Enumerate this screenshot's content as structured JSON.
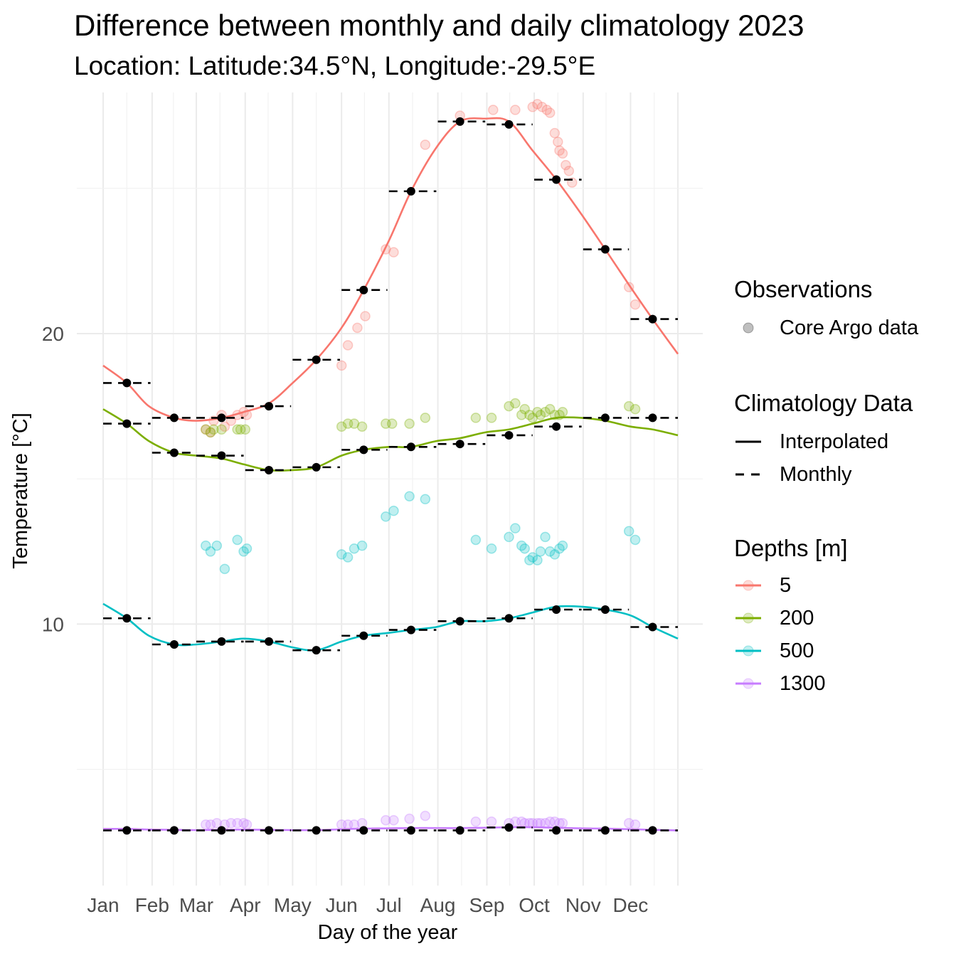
{
  "title": "Difference between monthly and daily climatology 2023",
  "subtitle": "Location: Latitude:34.5°N, Longitude:-29.5°E",
  "chart_data": {
    "type": "line",
    "xlabel": "Day of the year",
    "ylabel": "Temperature [°C]",
    "xlim": [
      1,
      365
    ],
    "ylim": [
      1,
      28.3
    ],
    "x_ticks": [
      {
        "day": 1,
        "label": "Jan"
      },
      {
        "day": 32,
        "label": "Feb"
      },
      {
        "day": 60,
        "label": "Mar"
      },
      {
        "day": 91,
        "label": "Apr"
      },
      {
        "day": 121,
        "label": "May"
      },
      {
        "day": 152,
        "label": "Jun"
      },
      {
        "day": 182,
        "label": "Jul"
      },
      {
        "day": 213,
        "label": "Aug"
      },
      {
        "day": 244,
        "label": "Sep"
      },
      {
        "day": 274,
        "label": "Oct"
      },
      {
        "day": 305,
        "label": "Nov"
      },
      {
        "day": 335,
        "label": "Dec"
      }
    ],
    "y_ticks": [
      10,
      20
    ],
    "y_minor": [
      5,
      15,
      25
    ],
    "grid": true,
    "series": [
      {
        "name": "5",
        "color": "#F8766D",
        "monthly": [
          18.3,
          17.1,
          17.1,
          17.5,
          19.1,
          21.5,
          24.9,
          27.3,
          27.2,
          25.3,
          22.9,
          20.5
        ],
        "interpolated": [
          [
            1,
            18.9
          ],
          [
            16,
            18.3
          ],
          [
            30,
            17.5
          ],
          [
            46,
            17.1
          ],
          [
            60,
            17.0
          ],
          [
            76,
            17.1
          ],
          [
            90,
            17.3
          ],
          [
            106,
            17.6
          ],
          [
            121,
            18.3
          ],
          [
            136,
            19.1
          ],
          [
            152,
            20.2
          ],
          [
            166,
            21.5
          ],
          [
            182,
            23.2
          ],
          [
            196,
            24.9
          ],
          [
            212,
            26.4
          ],
          [
            227,
            27.3
          ],
          [
            243,
            27.4
          ],
          [
            258,
            27.3
          ],
          [
            273,
            26.3
          ],
          [
            288,
            25.3
          ],
          [
            304,
            24.1
          ],
          [
            319,
            22.9
          ],
          [
            335,
            21.6
          ],
          [
            349,
            20.5
          ],
          [
            365,
            19.3
          ]
        ],
        "observations": [
          [
            66,
            16.7
          ],
          [
            69,
            16.6
          ],
          [
            71,
            17.0
          ],
          [
            76,
            17.2
          ],
          [
            78,
            16.8
          ],
          [
            82,
            17.0
          ],
          [
            86,
            17.2
          ],
          [
            90,
            17.3
          ],
          [
            92,
            17.2
          ],
          [
            152,
            18.9
          ],
          [
            156,
            19.6
          ],
          [
            162,
            20.2
          ],
          [
            167,
            20.6
          ],
          [
            180,
            22.9
          ],
          [
            185,
            22.8
          ],
          [
            205,
            26.5
          ],
          [
            227,
            27.5
          ],
          [
            248,
            27.7
          ],
          [
            262,
            27.7
          ],
          [
            273,
            27.8
          ],
          [
            276,
            27.9
          ],
          [
            279,
            27.8
          ],
          [
            282,
            27.7
          ],
          [
            284,
            27.6
          ],
          [
            287,
            26.9
          ],
          [
            289,
            26.6
          ],
          [
            290,
            26.3
          ],
          [
            292,
            26.2
          ],
          [
            294,
            25.8
          ],
          [
            296,
            25.6
          ],
          [
            298,
            25.2
          ],
          [
            334,
            21.6
          ],
          [
            338,
            21.0
          ]
        ]
      },
      {
        "name": "200",
        "color": "#7CAE00",
        "monthly": [
          16.9,
          15.9,
          15.8,
          15.3,
          15.4,
          16.0,
          16.1,
          16.2,
          16.5,
          16.8,
          17.1,
          17.1
        ],
        "interpolated": [
          [
            1,
            17.4
          ],
          [
            16,
            16.9
          ],
          [
            30,
            16.3
          ],
          [
            46,
            15.9
          ],
          [
            60,
            15.8
          ],
          [
            76,
            15.7
          ],
          [
            90,
            15.5
          ],
          [
            106,
            15.3
          ],
          [
            121,
            15.3
          ],
          [
            136,
            15.4
          ],
          [
            152,
            15.8
          ],
          [
            166,
            16.0
          ],
          [
            182,
            16.1
          ],
          [
            196,
            16.1
          ],
          [
            212,
            16.3
          ],
          [
            227,
            16.4
          ],
          [
            243,
            16.6
          ],
          [
            258,
            16.7
          ],
          [
            273,
            16.9
          ],
          [
            288,
            17.1
          ],
          [
            304,
            17.1
          ],
          [
            319,
            17.0
          ],
          [
            335,
            16.8
          ],
          [
            349,
            16.7
          ],
          [
            365,
            16.5
          ]
        ],
        "observations": [
          [
            66,
            16.7
          ],
          [
            69,
            16.6
          ],
          [
            71,
            16.7
          ],
          [
            76,
            16.7
          ],
          [
            86,
            16.7
          ],
          [
            88,
            16.7
          ],
          [
            91,
            16.7
          ],
          [
            152,
            16.8
          ],
          [
            156,
            16.9
          ],
          [
            160,
            16.9
          ],
          [
            165,
            16.8
          ],
          [
            180,
            16.9
          ],
          [
            184,
            16.9
          ],
          [
            195,
            16.9
          ],
          [
            205,
            17.1
          ],
          [
            237,
            17.1
          ],
          [
            247,
            17.1
          ],
          [
            258,
            17.5
          ],
          [
            262,
            17.6
          ],
          [
            266,
            17.2
          ],
          [
            268,
            17.4
          ],
          [
            271,
            17.2
          ],
          [
            273,
            17.1
          ],
          [
            276,
            17.3
          ],
          [
            278,
            17.2
          ],
          [
            281,
            17.3
          ],
          [
            284,
            17.4
          ],
          [
            287,
            17.2
          ],
          [
            290,
            17.2
          ],
          [
            292,
            17.3
          ],
          [
            334,
            17.5
          ],
          [
            338,
            17.4
          ]
        ]
      },
      {
        "name": "500",
        "color": "#00BFC4",
        "monthly": [
          10.2,
          9.3,
          9.4,
          9.4,
          9.1,
          9.6,
          9.8,
          10.1,
          10.2,
          10.5,
          10.5,
          9.9
        ],
        "interpolated": [
          [
            1,
            10.7
          ],
          [
            16,
            10.2
          ],
          [
            30,
            9.6
          ],
          [
            46,
            9.3
          ],
          [
            60,
            9.3
          ],
          [
            76,
            9.4
          ],
          [
            90,
            9.5
          ],
          [
            106,
            9.4
          ],
          [
            121,
            9.2
          ],
          [
            136,
            9.1
          ],
          [
            152,
            9.4
          ],
          [
            166,
            9.6
          ],
          [
            182,
            9.7
          ],
          [
            196,
            9.8
          ],
          [
            212,
            9.9
          ],
          [
            227,
            10.1
          ],
          [
            243,
            10.1
          ],
          [
            258,
            10.2
          ],
          [
            273,
            10.4
          ],
          [
            288,
            10.6
          ],
          [
            304,
            10.6
          ],
          [
            319,
            10.5
          ],
          [
            335,
            10.3
          ],
          [
            349,
            9.9
          ],
          [
            365,
            9.5
          ]
        ],
        "observations": [
          [
            66,
            12.7
          ],
          [
            69,
            12.5
          ],
          [
            73,
            12.7
          ],
          [
            78,
            11.9
          ],
          [
            86,
            12.9
          ],
          [
            90,
            12.5
          ],
          [
            92,
            12.6
          ],
          [
            152,
            12.4
          ],
          [
            156,
            12.3
          ],
          [
            160,
            12.6
          ],
          [
            165,
            12.7
          ],
          [
            180,
            13.7
          ],
          [
            185,
            13.9
          ],
          [
            195,
            14.4
          ],
          [
            205,
            14.3
          ],
          [
            237,
            12.9
          ],
          [
            247,
            12.6
          ],
          [
            258,
            13.0
          ],
          [
            262,
            13.3
          ],
          [
            266,
            12.7
          ],
          [
            268,
            12.6
          ],
          [
            271,
            12.2
          ],
          [
            273,
            12.3
          ],
          [
            276,
            12.2
          ],
          [
            278,
            12.5
          ],
          [
            281,
            13.0
          ],
          [
            284,
            12.5
          ],
          [
            287,
            12.4
          ],
          [
            290,
            12.6
          ],
          [
            292,
            12.7
          ],
          [
            334,
            13.2
          ],
          [
            338,
            12.9
          ]
        ]
      },
      {
        "name": "1300",
        "color": "#C77CFF",
        "monthly": [
          2.9,
          2.9,
          2.9,
          2.9,
          2.9,
          2.9,
          2.9,
          2.9,
          3.0,
          2.9,
          2.9,
          2.9
        ],
        "interpolated": [
          [
            1,
            2.95
          ],
          [
            16,
            2.95
          ],
          [
            30,
            2.93
          ],
          [
            46,
            2.92
          ],
          [
            60,
            2.91
          ],
          [
            76,
            2.92
          ],
          [
            90,
            2.93
          ],
          [
            106,
            2.92
          ],
          [
            121,
            2.91
          ],
          [
            136,
            2.91
          ],
          [
            152,
            2.94
          ],
          [
            166,
            2.96
          ],
          [
            182,
            2.97
          ],
          [
            196,
            2.98
          ],
          [
            212,
            2.98
          ],
          [
            227,
            2.98
          ],
          [
            243,
            2.99
          ],
          [
            258,
            3.01
          ],
          [
            273,
            3.01
          ],
          [
            288,
            2.99
          ],
          [
            304,
            2.97
          ],
          [
            319,
            2.96
          ],
          [
            335,
            2.94
          ],
          [
            349,
            2.92
          ],
          [
            365,
            2.9
          ]
        ],
        "observations": [
          [
            66,
            3.1
          ],
          [
            69,
            3.1
          ],
          [
            73,
            3.15
          ],
          [
            78,
            3.1
          ],
          [
            82,
            3.15
          ],
          [
            86,
            3.15
          ],
          [
            90,
            3.15
          ],
          [
            92,
            3.1
          ],
          [
            152,
            3.1
          ],
          [
            156,
            3.1
          ],
          [
            160,
            3.1
          ],
          [
            165,
            3.15
          ],
          [
            180,
            3.25
          ],
          [
            185,
            3.25
          ],
          [
            195,
            3.3
          ],
          [
            205,
            3.4
          ],
          [
            237,
            3.2
          ],
          [
            247,
            3.2
          ],
          [
            258,
            3.15
          ],
          [
            262,
            3.2
          ],
          [
            266,
            3.2
          ],
          [
            268,
            3.15
          ],
          [
            271,
            3.15
          ],
          [
            273,
            3.15
          ],
          [
            276,
            3.15
          ],
          [
            278,
            3.15
          ],
          [
            281,
            3.15
          ],
          [
            284,
            3.2
          ],
          [
            287,
            3.2
          ],
          [
            290,
            3.15
          ],
          [
            292,
            3.15
          ],
          [
            334,
            3.15
          ],
          [
            338,
            3.1
          ]
        ]
      }
    ],
    "monthly_days": [
      16,
      46,
      76,
      106,
      136,
      166,
      196,
      227,
      258,
      288,
      319,
      349
    ],
    "monthly_span": [
      [
        1,
        31
      ],
      [
        32,
        59
      ],
      [
        60,
        90
      ],
      [
        91,
        120
      ],
      [
        121,
        151
      ],
      [
        152,
        181
      ],
      [
        182,
        212
      ],
      [
        213,
        243
      ],
      [
        244,
        273
      ],
      [
        274,
        304
      ],
      [
        305,
        334
      ],
      [
        335,
        365
      ]
    ]
  },
  "legend": {
    "observations": {
      "title": "Observations",
      "items": [
        {
          "label": "Core Argo data",
          "color": "#000000"
        }
      ]
    },
    "climatology": {
      "title": "Climatology Data",
      "items": [
        {
          "label": "Interpolated",
          "style": "solid"
        },
        {
          "label": "Monthly",
          "style": "dashed"
        }
      ]
    },
    "depths": {
      "title": "Depths [m]",
      "items": [
        {
          "label": "5",
          "color": "#F8766D"
        },
        {
          "label": "200",
          "color": "#7CAE00"
        },
        {
          "label": "500",
          "color": "#00BFC4"
        },
        {
          "label": "1300",
          "color": "#C77CFF"
        }
      ]
    }
  }
}
